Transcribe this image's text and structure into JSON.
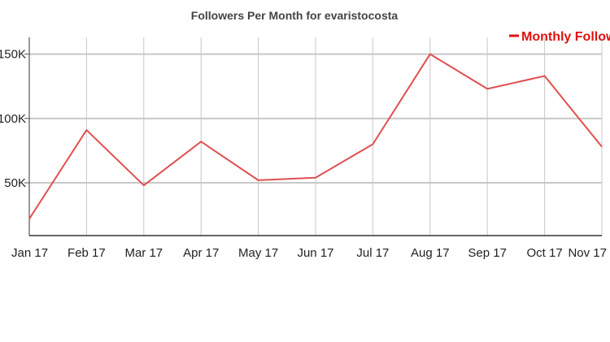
{
  "chart_data": {
    "type": "line",
    "title": "Followers Per Month for evaristocosta",
    "xlabel": "",
    "ylabel": "",
    "categories": [
      "Jan 17",
      "Feb 17",
      "Mar 17",
      "Apr 17",
      "May 17",
      "Jun 17",
      "Jul 17",
      "Aug 17",
      "Sep 17",
      "Oct 17",
      "Nov 17"
    ],
    "series": [
      {
        "name": "Monthly Follower",
        "color": "#e05050",
        "values": [
          22000,
          91000,
          48000,
          82000,
          52000,
          54000,
          80000,
          150000,
          123000,
          133000,
          78000
        ]
      }
    ],
    "ylim": [
      9000,
      163000
    ],
    "yticks": [
      50000,
      100000,
      150000
    ],
    "ytick_labels": [
      "50K",
      "100K",
      "150K"
    ],
    "grid": true,
    "legend_position": "top-right",
    "legend_color": "#e01010"
  }
}
